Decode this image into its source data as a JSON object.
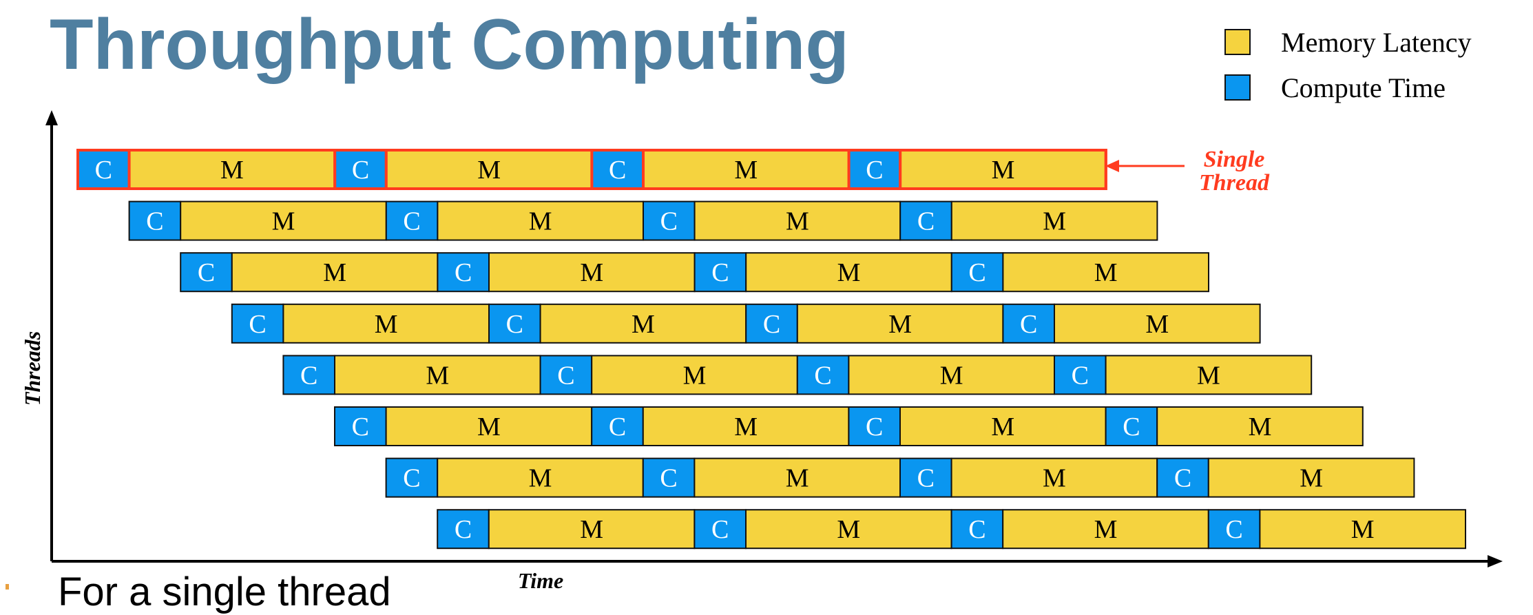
{
  "title": "Throughput Computing",
  "legend": [
    {
      "label": "Memory Latency",
      "color": "#f5d33f"
    },
    {
      "label": "Compute Time",
      "color": "#0a96f0"
    }
  ],
  "axes": {
    "x_label": "Time",
    "y_label": "Threads"
  },
  "annotation": {
    "line1": "Single",
    "line2": "Thread",
    "color": "#ff3b1f"
  },
  "segment_labels": {
    "compute": "C",
    "memory": "M"
  },
  "thread_count": 8,
  "highlighted_thread_index": 0,
  "pattern": [
    "C",
    "M",
    "C",
    "M",
    "C",
    "M",
    "C",
    "M"
  ],
  "colors": {
    "compute": "#0a96f0",
    "memory": "#f5d33f",
    "highlight_border": "#ff3b1f",
    "title": "#4f7fa0"
  },
  "bottom_text": "For a single thread"
}
